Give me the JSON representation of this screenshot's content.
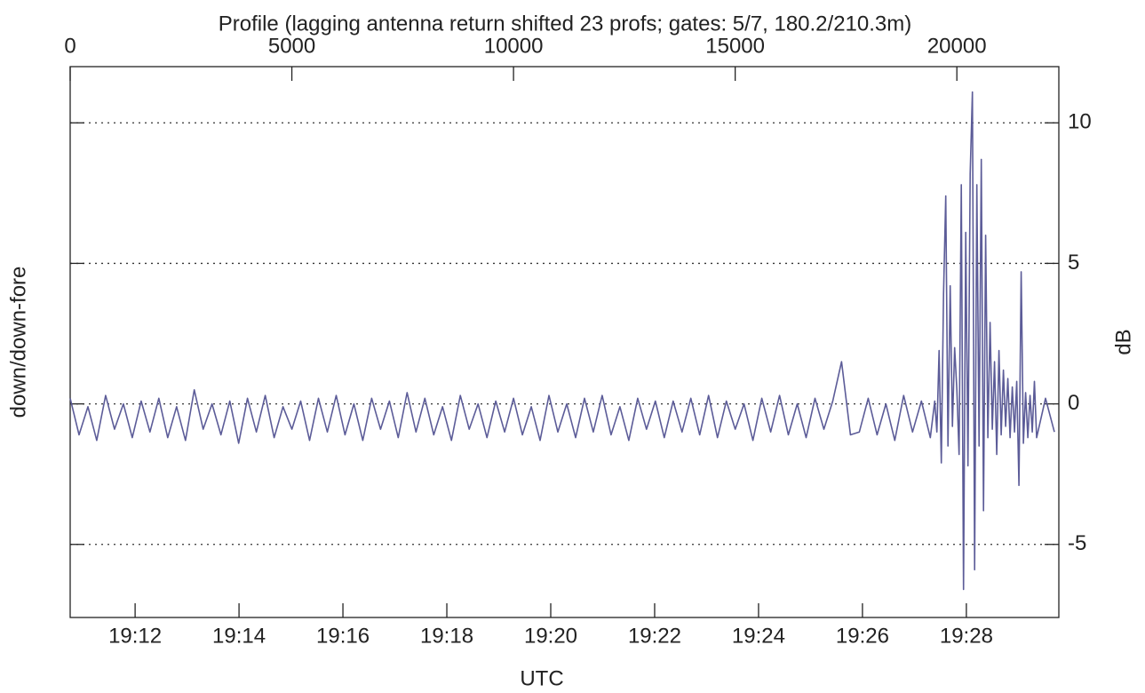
{
  "chart_data": {
    "type": "line",
    "title": "Profile (lagging antenna return shifted 23 profs; gates: 5/7, 180.2/210.3m)",
    "ylabel": "down/down-fore",
    "y2label": "dB",
    "xlabel": "UTC",
    "color": "#5c5c98",
    "grid": true,
    "xlim": [
      0,
      22300
    ],
    "xticks": [
      0,
      5000,
      10000,
      15000,
      20000
    ],
    "x2lim": [
      1150.75,
      1169.78
    ],
    "x2ticks": [
      {
        "value": 1152,
        "label": "19:12"
      },
      {
        "value": 1154,
        "label": "19:14"
      },
      {
        "value": 1156,
        "label": "19:16"
      },
      {
        "value": 1158,
        "label": "19:18"
      },
      {
        "value": 1160,
        "label": "19:20"
      },
      {
        "value": 1162,
        "label": "19:22"
      },
      {
        "value": 1164,
        "label": "19:24"
      },
      {
        "value": 1166,
        "label": "19:26"
      },
      {
        "value": 1168,
        "label": "19:28"
      }
    ],
    "ylim": [
      -7.6,
      12
    ],
    "yticks": [
      -5,
      0,
      5,
      10
    ],
    "x": [
      0,
      200,
      400,
      600,
      800,
      1000,
      1200,
      1400,
      1600,
      1800,
      2000,
      2200,
      2400,
      2600,
      2800,
      3000,
      3200,
      3400,
      3600,
      3800,
      4000,
      4200,
      4400,
      4600,
      4800,
      5000,
      5200,
      5400,
      5600,
      5800,
      6000,
      6200,
      6400,
      6600,
      6800,
      7000,
      7200,
      7400,
      7600,
      7800,
      8000,
      8200,
      8400,
      8600,
      8800,
      9000,
      9200,
      9400,
      9600,
      9800,
      10000,
      10200,
      10400,
      10600,
      10800,
      11000,
      11200,
      11400,
      11600,
      11800,
      12000,
      12200,
      12400,
      12600,
      12800,
      13000,
      13200,
      13400,
      13600,
      13800,
      14000,
      14200,
      14400,
      14600,
      14800,
      15000,
      15200,
      15400,
      15600,
      15800,
      16000,
      16200,
      16400,
      16600,
      16800,
      17000,
      17200,
      17400,
      17600,
      17800,
      18000,
      18200,
      18400,
      18600,
      18800,
      19000,
      19200,
      19400,
      19500,
      19550,
      19600,
      19650,
      19700,
      19750,
      19800,
      19850,
      19900,
      19950,
      20000,
      20050,
      20100,
      20150,
      20200,
      20250,
      20300,
      20350,
      20400,
      20450,
      20500,
      20550,
      20600,
      20650,
      20700,
      20750,
      20800,
      20850,
      20900,
      20950,
      21000,
      21050,
      21100,
      21150,
      21200,
      21250,
      21300,
      21350,
      21400,
      21450,
      21500,
      21550,
      21600,
      21650,
      21700,
      21750,
      21800,
      22000,
      22200
    ],
    "values": [
      0.2,
      -1.1,
      -0.1,
      -1.3,
      0.3,
      -0.9,
      0.0,
      -1.2,
      0.1,
      -1.0,
      0.2,
      -1.2,
      -0.1,
      -1.3,
      0.5,
      -0.9,
      0.0,
      -1.1,
      0.1,
      -1.4,
      0.2,
      -1.0,
      0.3,
      -1.2,
      -0.1,
      -0.9,
      0.1,
      -1.3,
      0.2,
      -1.0,
      0.3,
      -1.1,
      0.0,
      -1.3,
      0.2,
      -0.9,
      0.1,
      -1.2,
      0.4,
      -1.0,
      0.2,
      -1.1,
      -0.1,
      -1.3,
      0.3,
      -0.9,
      0.0,
      -1.2,
      0.1,
      -1.0,
      0.2,
      -1.1,
      -0.1,
      -1.3,
      0.3,
      -1.0,
      0.0,
      -1.2,
      0.2,
      -1.0,
      0.3,
      -1.1,
      -0.1,
      -1.3,
      0.2,
      -0.9,
      0.1,
      -1.2,
      0.1,
      -1.0,
      0.2,
      -1.1,
      0.3,
      -1.2,
      0.1,
      -0.9,
      0.0,
      -1.3,
      0.2,
      -1.0,
      0.3,
      -1.1,
      0.0,
      -1.2,
      0.2,
      -0.9,
      0.1,
      1.5,
      -1.1,
      -1.0,
      0.2,
      -1.1,
      0.0,
      -1.3,
      0.3,
      -1.0,
      0.1,
      -1.2,
      0.1,
      -1.0,
      1.9,
      -2.1,
      3.9,
      7.4,
      -1.5,
      4.2,
      -0.8,
      2.0,
      0.5,
      -1.8,
      7.8,
      -6.6,
      6.1,
      -2.2,
      8.2,
      11.1,
      -5.9,
      7.8,
      -1.5,
      8.7,
      -3.8,
      6.0,
      -1.2,
      2.9,
      -0.9,
      1.5,
      -1.8,
      1.9,
      -1.1,
      1.2,
      -0.8,
      0.9,
      -1.2,
      0.6,
      -1.0,
      0.8,
      -2.9,
      4.7,
      -1.4,
      0.4,
      -1.2,
      0.3,
      -1.0,
      0.8,
      -1.2,
      0.2,
      -1.0
    ]
  }
}
